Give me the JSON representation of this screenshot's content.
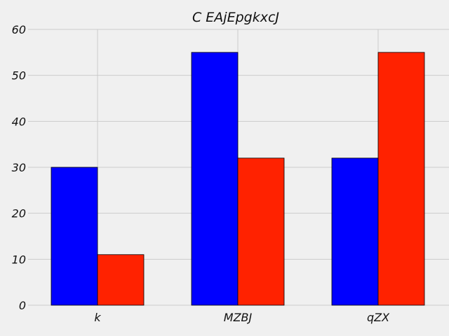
{
  "chart_data": {
    "type": "bar",
    "title": "C EAjEpgkxcJ",
    "xlabel": "",
    "ylabel": "",
    "categories": [
      "k",
      "MZBJ",
      "qZX"
    ],
    "series": [
      {
        "values": [
          30,
          55,
          32
        ],
        "color": "#0000ff"
      },
      {
        "values": [
          11,
          32,
          55
        ],
        "color": "#ff2200"
      }
    ],
    "ylim": [
      0,
      60
    ],
    "yticks": [
      "0",
      "10",
      "20",
      "30",
      "40",
      "50",
      "60"
    ],
    "grid": true,
    "legend": "none",
    "background": "#f0f0f0"
  }
}
